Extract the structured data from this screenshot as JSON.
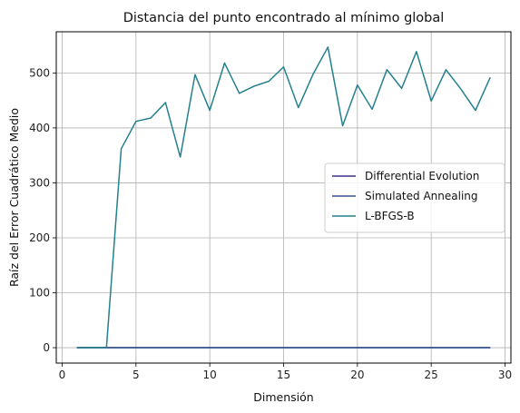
{
  "chart_data": {
    "type": "line",
    "title": "Distancia del punto encontrado al mínimo global",
    "xlabel": "Dimensión",
    "ylabel": "Raíz del Error Cuadrático Medio",
    "xlim": [
      -0.4,
      30.4
    ],
    "ylim": [
      -28,
      575
    ],
    "xticks": [
      0,
      5,
      10,
      15,
      20,
      25,
      30
    ],
    "yticks": [
      0,
      100,
      200,
      300,
      400,
      500
    ],
    "grid": true,
    "legend_position": "center-right",
    "x": [
      1,
      2,
      3,
      4,
      5,
      6,
      7,
      8,
      9,
      10,
      11,
      12,
      13,
      14,
      15,
      16,
      17,
      18,
      19,
      20,
      21,
      22,
      23,
      24,
      25,
      26,
      27,
      28,
      29
    ],
    "series": [
      {
        "name": "Differential Evolution",
        "color": "#3b2f86",
        "values": [
          0,
          0,
          0,
          0,
          0,
          0,
          0,
          0,
          0,
          0,
          0,
          0,
          0,
          0,
          0,
          0,
          0,
          0,
          0,
          0,
          0,
          0,
          0,
          0,
          0,
          0,
          0,
          0,
          0
        ]
      },
      {
        "name": "Simulated Annealing",
        "color": "#31578e",
        "values": [
          0,
          0,
          0,
          0,
          0,
          0,
          0,
          0,
          0,
          0,
          0,
          0,
          0,
          0,
          0,
          0,
          0,
          0,
          0,
          0,
          0,
          0,
          0,
          0,
          0,
          0,
          0,
          0,
          0
        ]
      },
      {
        "name": "L-BFGS-B",
        "color": "#23808d",
        "values": [
          0,
          0,
          0,
          362,
          412,
          418,
          446,
          347,
          497,
          432,
          518,
          463,
          476,
          485,
          511,
          437,
          498,
          547,
          404,
          478,
          434,
          506,
          472,
          539,
          449,
          506,
          471,
          432,
          492
        ]
      }
    ]
  }
}
